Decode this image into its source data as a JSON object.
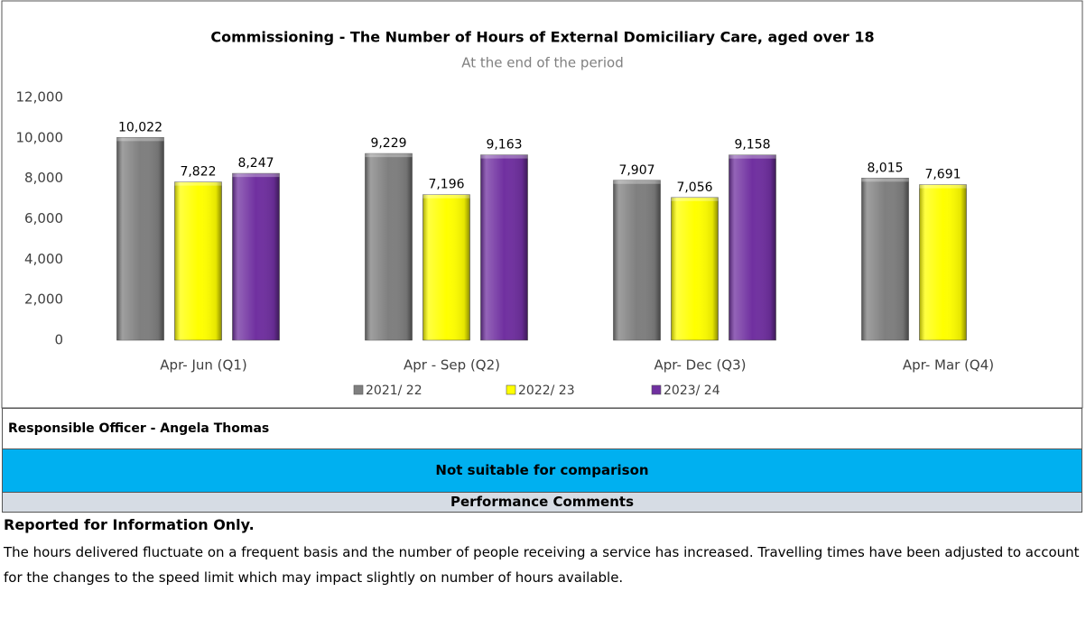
{
  "chart_data": {
    "type": "bar",
    "title": "Commissioning - The Number of Hours of External Domiciliary Care, aged over 18",
    "subtitle": "At the end of the period",
    "categories": [
      "Apr- Jun  (Q1)",
      "Apr - Sep  (Q2)",
      "Apr- Dec  (Q3)",
      "Apr- Mar  (Q4)"
    ],
    "series": [
      {
        "name": "2021/ 22",
        "color": "#7f7f7f",
        "values": [
          10022,
          9229,
          7907,
          8015
        ],
        "value_labels": [
          "10,022",
          "9,229",
          "7,907",
          "8,015"
        ]
      },
      {
        "name": "2022/ 23",
        "color": "#ffff00",
        "values": [
          7822,
          7196,
          7056,
          7691
        ],
        "value_labels": [
          "7,822",
          "7,196",
          "7,056",
          "7,691"
        ]
      },
      {
        "name": "2023/ 24",
        "color": "#7030a0",
        "values": [
          8247,
          9163,
          9158,
          null
        ],
        "value_labels": [
          "8,247",
          "9,163",
          "9,158",
          null
        ]
      }
    ],
    "ylim": [
      0,
      12000
    ],
    "yticks": [
      0,
      {
        "value": 2000,
        "label": "2,000"
      },
      {
        "value": 4000,
        "label": "4,000"
      },
      {
        "value": 6000,
        "label": "6,000"
      },
      {
        "value": 8000,
        "label": "8,000"
      },
      {
        "value": 10000,
        "label": "10,000"
      },
      {
        "value": 12000,
        "label": "12,000"
      }
    ],
    "grid": false,
    "legend": "bottom"
  },
  "officer": "Responsible Officer - Angela Thomas",
  "comparison": "Not suitable for comparison",
  "comments_header": "Performance Comments",
  "comments_lead": "Reported for Information Only.",
  "comments_text": "The hours delivered fluctuate on a frequent basis and the number of people receiving a service has increased. Travelling times have been adjusted to account for the changes to the speed limit which may impact slightly on number of hours available."
}
